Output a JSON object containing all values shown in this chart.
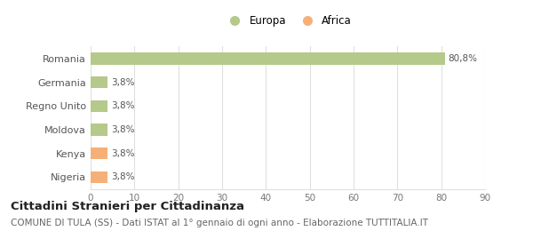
{
  "categories": [
    "Nigeria",
    "Kenya",
    "Moldova",
    "Regno Unito",
    "Germania",
    "Romania"
  ],
  "values": [
    3.8,
    3.8,
    3.8,
    3.8,
    3.8,
    80.8
  ],
  "colors": [
    "#f5b07a",
    "#f5b07a",
    "#b5c98a",
    "#b5c98a",
    "#b5c98a",
    "#b5c98a"
  ],
  "labels": [
    "3,8%",
    "3,8%",
    "3,8%",
    "3,8%",
    "3,8%",
    "80,8%"
  ],
  "xlim": [
    0,
    90
  ],
  "xticks": [
    0,
    10,
    20,
    30,
    40,
    50,
    60,
    70,
    80,
    90
  ],
  "legend_entries": [
    {
      "label": "Europa",
      "color": "#b5c98a"
    },
    {
      "label": "Africa",
      "color": "#f5b07a"
    }
  ],
  "title": "Cittadini Stranieri per Cittadinanza",
  "subtitle": "COMUNE DI TULA (SS) - Dati ISTAT al 1° gennaio di ogni anno - Elaborazione TUTTITALIA.IT",
  "background_color": "#ffffff",
  "grid_color": "#e0e0e0",
  "bar_height": 0.5,
  "label_fontsize": 7.5,
  "ytick_fontsize": 8,
  "xtick_fontsize": 7.5,
  "title_fontsize": 9.5,
  "subtitle_fontsize": 7.5
}
